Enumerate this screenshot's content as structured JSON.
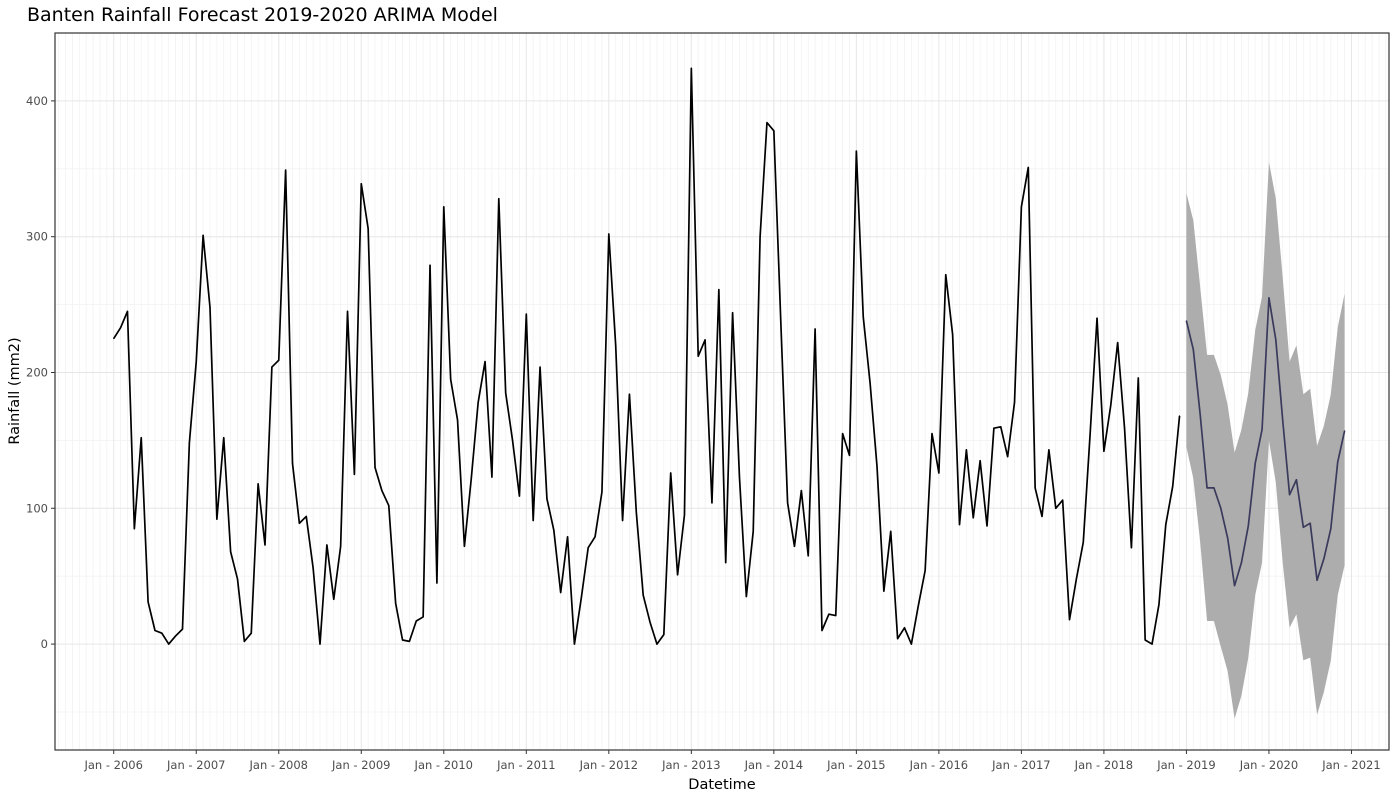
{
  "chart_data": {
    "type": "line",
    "title": "Banten Rainfall Forecast 2019-2020 ARIMA Model",
    "xlabel": "Datetime",
    "ylabel": "Rainfall (mm2)",
    "x_range": [
      "2005-04-15",
      "2021-06-15"
    ],
    "ylim": [
      -78,
      450
    ],
    "y_ticks": [
      0,
      100,
      200,
      300,
      400
    ],
    "x_tick_labels": [
      "Jan - 2006",
      "Jan - 2007",
      "Jan - 2008",
      "Jan - 2009",
      "Jan - 2010",
      "Jan - 2011",
      "Jan - 2012",
      "Jan - 2013",
      "Jan - 2014",
      "Jan - 2015",
      "Jan - 2016",
      "Jan - 2017",
      "Jan - 2018",
      "Jan - 2019",
      "Jan - 2020",
      "Jan - 2021"
    ],
    "grid": "on",
    "legend": "none",
    "colors": {
      "observed_line": "#000000",
      "forecast_line": "#3a3a5c",
      "forecast_band": "#adadad",
      "grid_major": "#e6e6e6",
      "grid_minor": "#f2f2f2",
      "panel_border": "#333333"
    },
    "series": [
      {
        "start": "2006-01",
        "values": [
          225,
          233,
          245,
          85,
          152,
          31,
          10,
          8,
          0,
          6,
          11,
          148,
          208,
          301,
          248,
          92,
          152,
          68,
          48,
          2,
          8,
          118,
          73,
          204,
          209,
          349,
          133,
          89,
          94,
          56,
          0,
          73,
          33,
          72,
          245,
          125,
          339,
          306,
          130,
          113,
          102,
          30,
          3,
          2,
          17,
          20,
          279,
          45,
          322,
          195,
          165,
          72,
          122,
          178,
          208,
          123,
          328,
          185,
          150,
          109,
          243,
          91,
          204,
          107,
          84,
          38,
          79,
          0,
          34,
          71,
          79,
          112,
          302,
          220,
          91,
          184,
          97,
          36,
          16,
          0,
          7,
          126,
          51,
          95,
          424,
          212,
          224,
          104,
          261,
          60,
          244,
          123,
          35,
          83,
          300,
          384,
          378,
          239,
          104,
          72,
          113,
          65,
          232,
          10,
          22,
          21,
          155,
          139,
          363,
          241,
          192,
          131,
          39,
          83,
          4,
          12,
          0,
          28,
          54,
          155,
          126,
          272,
          228,
          88,
          143,
          93,
          135,
          87,
          159,
          160,
          138,
          178,
          322,
          351,
          115,
          94,
          143,
          100,
          106,
          18,
          48,
          75,
          155,
          240,
          142,
          176,
          222,
          159,
          71,
          196,
          3,
          0,
          29,
          88,
          116,
          168
        ]
      },
      {
        "start": "2019-01",
        "values": [
          238,
          217,
          169,
          115,
          115,
          100,
          78,
          43,
          60,
          87,
          133,
          158,
          255,
          224,
          165,
          110,
          121,
          86,
          89,
          47,
          63,
          85,
          134,
          157
        ],
        "lower": [
          145,
          122,
          75,
          17,
          17,
          -2,
          -20,
          -55,
          -38,
          -10,
          36,
          60,
          150,
          119,
          60,
          12,
          22,
          -12,
          -10,
          -52,
          -35,
          -12,
          36,
          58
        ],
        "upper": [
          332,
          312,
          263,
          213,
          213,
          198,
          176,
          141,
          158,
          185,
          231,
          256,
          355,
          328,
          270,
          208,
          220,
          184,
          188,
          146,
          161,
          184,
          233,
          258
        ]
      }
    ]
  }
}
